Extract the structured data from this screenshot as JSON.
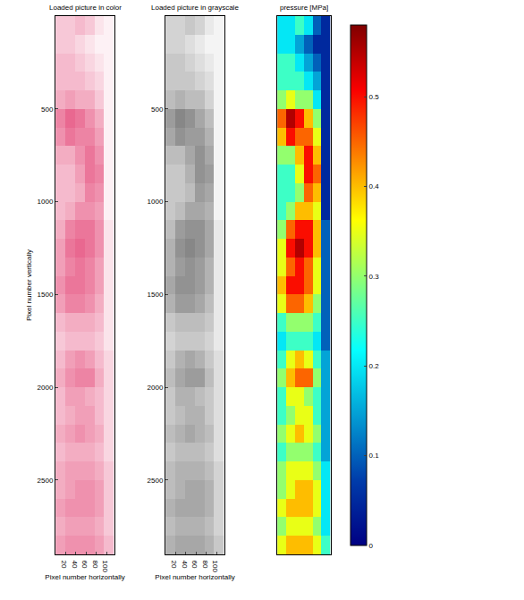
{
  "chart_data": [
    {
      "type": "heatmap",
      "title": "Loaded picture in color",
      "xlabel": "Pixel number horizontally",
      "ylabel": "Pixel number vertically",
      "x": [
        10,
        29,
        48,
        67,
        86,
        105
      ],
      "y": [
        50,
        150,
        250,
        350,
        450,
        550,
        650,
        750,
        850,
        950,
        1050,
        1150,
        1250,
        1350,
        1450,
        1550,
        1650,
        1750,
        1850,
        1950,
        2050,
        2150,
        2250,
        2350,
        2450,
        2550,
        2650,
        2750,
        2850
      ],
      "z": [
        [
          0.2,
          0.2,
          0.25,
          0.2,
          0.1,
          0.05
        ],
        [
          0.2,
          0.2,
          0.15,
          0.1,
          0.05,
          0.05
        ],
        [
          0.25,
          0.25,
          0.2,
          0.15,
          0.1,
          0.05
        ],
        [
          0.25,
          0.25,
          0.25,
          0.2,
          0.15,
          0.05
        ],
        [
          0.3,
          0.35,
          0.3,
          0.3,
          0.2,
          0.05
        ],
        [
          0.45,
          0.55,
          0.5,
          0.4,
          0.3,
          0.05
        ],
        [
          0.4,
          0.5,
          0.45,
          0.45,
          0.35,
          0.05
        ],
        [
          0.3,
          0.3,
          0.4,
          0.5,
          0.4,
          0.05
        ],
        [
          0.25,
          0.25,
          0.35,
          0.5,
          0.45,
          0.05
        ],
        [
          0.25,
          0.25,
          0.3,
          0.45,
          0.4,
          0.05
        ],
        [
          0.25,
          0.3,
          0.4,
          0.4,
          0.35,
          0.05
        ],
        [
          0.3,
          0.45,
          0.5,
          0.5,
          0.4,
          0.1
        ],
        [
          0.35,
          0.5,
          0.55,
          0.5,
          0.4,
          0.1
        ],
        [
          0.35,
          0.45,
          0.5,
          0.45,
          0.35,
          0.1
        ],
        [
          0.4,
          0.5,
          0.5,
          0.45,
          0.35,
          0.1
        ],
        [
          0.35,
          0.45,
          0.45,
          0.4,
          0.3,
          0.1
        ],
        [
          0.25,
          0.3,
          0.3,
          0.3,
          0.25,
          0.1
        ],
        [
          0.2,
          0.25,
          0.25,
          0.25,
          0.2,
          0.1
        ],
        [
          0.25,
          0.35,
          0.4,
          0.35,
          0.25,
          0.15
        ],
        [
          0.3,
          0.4,
          0.45,
          0.45,
          0.3,
          0.15
        ],
        [
          0.25,
          0.35,
          0.35,
          0.3,
          0.25,
          0.15
        ],
        [
          0.25,
          0.3,
          0.35,
          0.35,
          0.25,
          0.15
        ],
        [
          0.3,
          0.35,
          0.4,
          0.35,
          0.3,
          0.15
        ],
        [
          0.25,
          0.3,
          0.3,
          0.3,
          0.25,
          0.15
        ],
        [
          0.3,
          0.35,
          0.35,
          0.35,
          0.3,
          0.2
        ],
        [
          0.3,
          0.35,
          0.4,
          0.4,
          0.35,
          0.2
        ],
        [
          0.35,
          0.4,
          0.4,
          0.4,
          0.35,
          0.2
        ],
        [
          0.3,
          0.35,
          0.35,
          0.35,
          0.3,
          0.2
        ],
        [
          0.35,
          0.4,
          0.4,
          0.4,
          0.35,
          0.25
        ]
      ],
      "zlim": [
        0,
        0.58
      ],
      "color": "#e8608a",
      "xlim": [
        0,
        115
      ],
      "ylim": [
        0,
        2900
      ],
      "xticks": [
        20,
        40,
        60,
        80,
        100
      ],
      "yticks": [
        500,
        1000,
        1500,
        2000,
        2500
      ]
    },
    {
      "type": "heatmap",
      "title": "Loaded picture in grayscale",
      "xlabel": "Pixel number horizontally",
      "x": [
        10,
        29,
        48,
        67,
        86,
        105
      ],
      "y": [
        50,
        150,
        250,
        350,
        450,
        550,
        650,
        750,
        850,
        950,
        1050,
        1150,
        1250,
        1350,
        1450,
        1550,
        1650,
        1750,
        1850,
        1950,
        2050,
        2150,
        2250,
        2350,
        2450,
        2550,
        2650,
        2750,
        2850
      ],
      "z": [
        [
          0.2,
          0.2,
          0.25,
          0.2,
          0.1,
          0.05
        ],
        [
          0.2,
          0.2,
          0.15,
          0.1,
          0.05,
          0.05
        ],
        [
          0.25,
          0.25,
          0.2,
          0.15,
          0.1,
          0.05
        ],
        [
          0.25,
          0.25,
          0.25,
          0.2,
          0.15,
          0.05
        ],
        [
          0.3,
          0.35,
          0.3,
          0.3,
          0.2,
          0.05
        ],
        [
          0.45,
          0.55,
          0.5,
          0.4,
          0.3,
          0.05
        ],
        [
          0.4,
          0.5,
          0.45,
          0.45,
          0.35,
          0.05
        ],
        [
          0.3,
          0.3,
          0.4,
          0.5,
          0.4,
          0.05
        ],
        [
          0.25,
          0.25,
          0.35,
          0.5,
          0.45,
          0.05
        ],
        [
          0.25,
          0.25,
          0.3,
          0.45,
          0.4,
          0.05
        ],
        [
          0.25,
          0.3,
          0.4,
          0.4,
          0.35,
          0.05
        ],
        [
          0.3,
          0.45,
          0.5,
          0.5,
          0.4,
          0.1
        ],
        [
          0.35,
          0.5,
          0.55,
          0.5,
          0.4,
          0.1
        ],
        [
          0.35,
          0.45,
          0.5,
          0.45,
          0.35,
          0.1
        ],
        [
          0.4,
          0.5,
          0.5,
          0.45,
          0.35,
          0.1
        ],
        [
          0.35,
          0.45,
          0.45,
          0.4,
          0.3,
          0.1
        ],
        [
          0.25,
          0.3,
          0.3,
          0.3,
          0.25,
          0.1
        ],
        [
          0.2,
          0.25,
          0.25,
          0.25,
          0.2,
          0.1
        ],
        [
          0.25,
          0.35,
          0.4,
          0.35,
          0.25,
          0.15
        ],
        [
          0.3,
          0.4,
          0.45,
          0.45,
          0.3,
          0.15
        ],
        [
          0.25,
          0.35,
          0.35,
          0.3,
          0.25,
          0.15
        ],
        [
          0.25,
          0.3,
          0.35,
          0.35,
          0.25,
          0.15
        ],
        [
          0.3,
          0.35,
          0.4,
          0.35,
          0.3,
          0.15
        ],
        [
          0.25,
          0.3,
          0.3,
          0.3,
          0.25,
          0.15
        ],
        [
          0.3,
          0.35,
          0.35,
          0.35,
          0.3,
          0.2
        ],
        [
          0.3,
          0.35,
          0.4,
          0.4,
          0.35,
          0.2
        ],
        [
          0.35,
          0.4,
          0.4,
          0.4,
          0.35,
          0.2
        ],
        [
          0.3,
          0.35,
          0.35,
          0.35,
          0.3,
          0.2
        ],
        [
          0.35,
          0.4,
          0.4,
          0.4,
          0.35,
          0.25
        ]
      ],
      "zlim": [
        0,
        0.58
      ],
      "color": "#808080",
      "xlim": [
        0,
        115
      ],
      "ylim": [
        0,
        2900
      ],
      "xticks": [
        20,
        40,
        60,
        80,
        100
      ],
      "yticks": [
        500,
        1000,
        1500,
        2000,
        2500
      ]
    },
    {
      "type": "heatmap",
      "title": "pressure [MPa]",
      "x": [
        10,
        29,
        48,
        67,
        86,
        105
      ],
      "y": [
        50,
        150,
        250,
        350,
        450,
        550,
        650,
        750,
        850,
        950,
        1050,
        1150,
        1250,
        1350,
        1450,
        1550,
        1650,
        1750,
        1850,
        1950,
        2050,
        2150,
        2250,
        2350,
        2450,
        2550,
        2650,
        2750,
        2850
      ],
      "z": [
        [
          0.2,
          0.2,
          0.25,
          0.2,
          0.1,
          0.05
        ],
        [
          0.2,
          0.2,
          0.15,
          0.1,
          0.05,
          0.05
        ],
        [
          0.25,
          0.25,
          0.2,
          0.15,
          0.1,
          0.05
        ],
        [
          0.25,
          0.25,
          0.25,
          0.2,
          0.15,
          0.05
        ],
        [
          0.3,
          0.35,
          0.3,
          0.3,
          0.2,
          0.05
        ],
        [
          0.45,
          0.55,
          0.5,
          0.4,
          0.3,
          0.05
        ],
        [
          0.4,
          0.5,
          0.45,
          0.45,
          0.35,
          0.05
        ],
        [
          0.3,
          0.3,
          0.4,
          0.5,
          0.4,
          0.05
        ],
        [
          0.25,
          0.25,
          0.35,
          0.5,
          0.45,
          0.05
        ],
        [
          0.25,
          0.25,
          0.3,
          0.45,
          0.4,
          0.05
        ],
        [
          0.25,
          0.3,
          0.4,
          0.4,
          0.35,
          0.05
        ],
        [
          0.3,
          0.45,
          0.5,
          0.5,
          0.4,
          0.1
        ],
        [
          0.35,
          0.5,
          0.55,
          0.5,
          0.4,
          0.1
        ],
        [
          0.35,
          0.45,
          0.5,
          0.45,
          0.35,
          0.1
        ],
        [
          0.4,
          0.5,
          0.5,
          0.45,
          0.35,
          0.1
        ],
        [
          0.35,
          0.45,
          0.45,
          0.4,
          0.3,
          0.1
        ],
        [
          0.25,
          0.3,
          0.3,
          0.3,
          0.25,
          0.1
        ],
        [
          0.2,
          0.25,
          0.25,
          0.25,
          0.2,
          0.1
        ],
        [
          0.25,
          0.35,
          0.4,
          0.35,
          0.25,
          0.15
        ],
        [
          0.3,
          0.4,
          0.45,
          0.45,
          0.3,
          0.15
        ],
        [
          0.25,
          0.35,
          0.35,
          0.3,
          0.25,
          0.15
        ],
        [
          0.25,
          0.3,
          0.35,
          0.35,
          0.25,
          0.15
        ],
        [
          0.3,
          0.35,
          0.4,
          0.35,
          0.3,
          0.15
        ],
        [
          0.25,
          0.3,
          0.3,
          0.3,
          0.25,
          0.15
        ],
        [
          0.3,
          0.35,
          0.35,
          0.35,
          0.3,
          0.2
        ],
        [
          0.3,
          0.35,
          0.4,
          0.4,
          0.35,
          0.2
        ],
        [
          0.35,
          0.4,
          0.4,
          0.4,
          0.35,
          0.2
        ],
        [
          0.3,
          0.35,
          0.35,
          0.35,
          0.3,
          0.2
        ],
        [
          0.35,
          0.4,
          0.4,
          0.4,
          0.35,
          0.25
        ]
      ],
      "color": "jet",
      "colorbar": {
        "range": [
          0,
          0.58
        ],
        "ticks": [
          0,
          0.1,
          0.2,
          0.3,
          0.4,
          0.5
        ]
      },
      "xlim": [
        0,
        115
      ],
      "ylim": [
        0,
        2900
      ],
      "tick_labels": false
    }
  ]
}
